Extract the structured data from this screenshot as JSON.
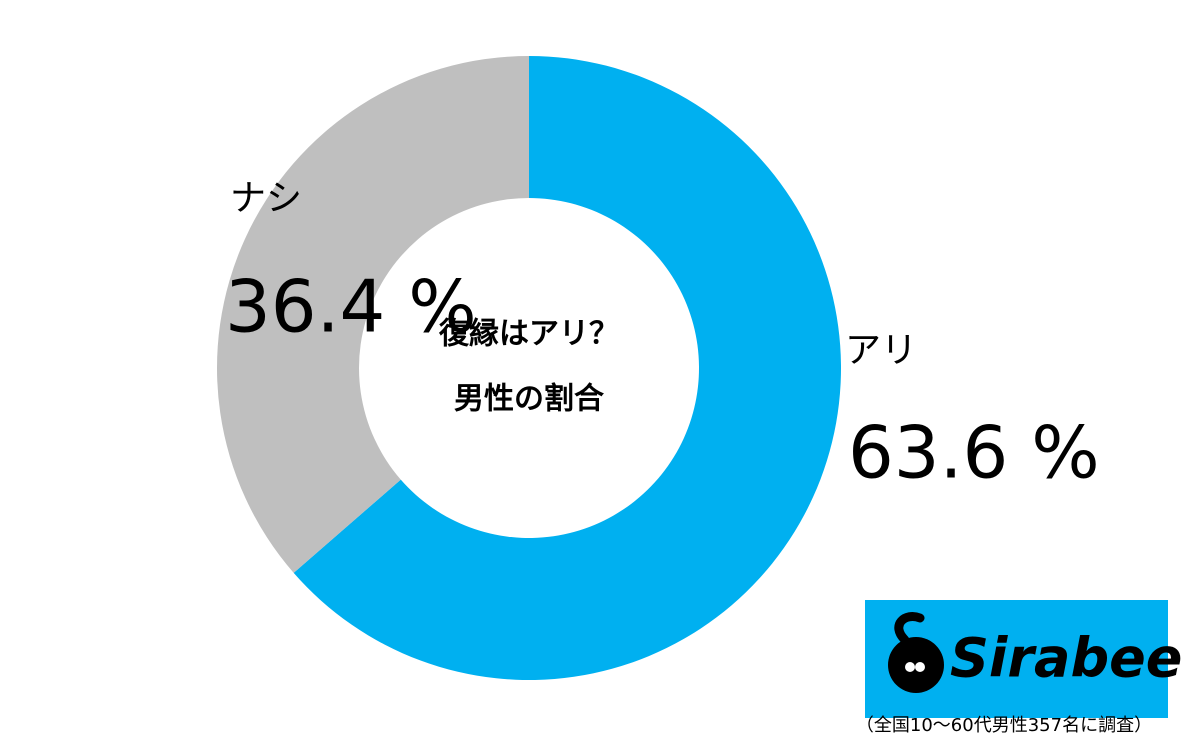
{
  "chart_data": {
    "type": "donut",
    "title": "復縁はアリ？",
    "subtitle": "男性の割合",
    "categories": [
      "アリ",
      "ナシ"
    ],
    "values": [
      63.6,
      36.4
    ],
    "value_labels": [
      "63.6 %",
      "36.4 %"
    ],
    "colors": [
      "#00b0f0",
      "#bfbfbf"
    ]
  },
  "logo": "Sirabee",
  "note": "（全国10〜60代男性357名に調査）"
}
